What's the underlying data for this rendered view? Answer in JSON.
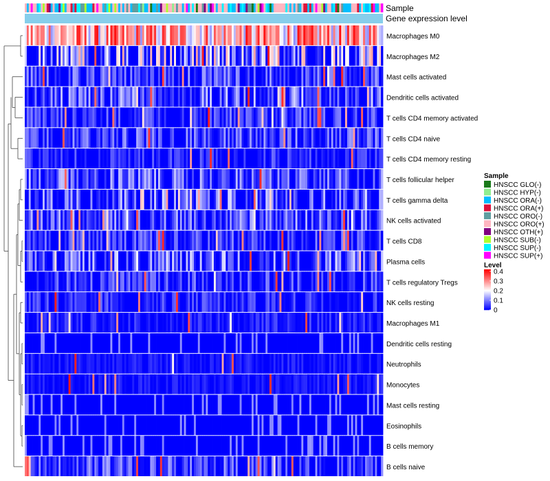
{
  "chart_data": {
    "type": "heatmap",
    "title": "",
    "annotation_rows": [
      {
        "label": "Sample"
      },
      {
        "label": "Gene expression level"
      }
    ],
    "rows": [
      {
        "label": "Macrophages M0",
        "mean": 0.26
      },
      {
        "label": "Macrophages M2",
        "mean": 0.13
      },
      {
        "label": "Mast cells activated",
        "mean": 0.06
      },
      {
        "label": "Dendritic cells activated",
        "mean": 0.08
      },
      {
        "label": "T cells CD4 memory activated",
        "mean": 0.05
      },
      {
        "label": "T cells CD4 naive",
        "mean": 0.06
      },
      {
        "label": "T cells CD4 memory resting",
        "mean": 0.04
      },
      {
        "label": "T cells follicular helper",
        "mean": 0.07
      },
      {
        "label": "T cells gamma delta",
        "mean": 0.08
      },
      {
        "label": "NK cells activated",
        "mean": 0.07
      },
      {
        "label": "T cells CD8",
        "mean": 0.05
      },
      {
        "label": "Plasma cells",
        "mean": 0.08
      },
      {
        "label": "T cells regulatory  Tregs",
        "mean": 0.05
      },
      {
        "label": "NK cells resting",
        "mean": 0.04
      },
      {
        "label": "Macrophages M1",
        "mean": 0.03
      },
      {
        "label": "Dendritic cells resting",
        "mean": 0.01
      },
      {
        "label": "Neutrophils",
        "mean": 0.02
      },
      {
        "label": "Monocytes",
        "mean": 0.02
      },
      {
        "label": "Mast cells resting",
        "mean": 0.015
      },
      {
        "label": "Eosinophils",
        "mean": 0.01
      },
      {
        "label": "B cells memory",
        "mean": 0.01
      },
      {
        "label": "B cells naive",
        "mean": 0.06
      }
    ],
    "n_columns": 180,
    "sample_legend": {
      "title": "Sample",
      "items": [
        {
          "label": "HNSCC GLO(-)",
          "color": "#1a7a1a"
        },
        {
          "label": "HNSCC HYP(-)",
          "color": "#90ee90"
        },
        {
          "label": "HNSCC ORA(-)",
          "color": "#00bfff"
        },
        {
          "label": "HNSCC ORA(+)",
          "color": "#dc143c"
        },
        {
          "label": "HNSCC ORO(-)",
          "color": "#5f9ea0"
        },
        {
          "label": "HNSCC ORO(+)",
          "color": "#ffb6c1"
        },
        {
          "label": "HNSCC OTH(+)",
          "color": "#800080"
        },
        {
          "label": "HNSCC SUB(-)",
          "color": "#adff2f"
        },
        {
          "label": "HNSCC SUP(-)",
          "color": "#00f5ff"
        },
        {
          "label": "HNSCC SUP(+)",
          "color": "#ff00ff"
        }
      ]
    },
    "level_legend": {
      "title": "Level",
      "ticks": [
        {
          "label": "0.4",
          "value": 0.4
        },
        {
          "label": "0.3",
          "value": 0.3
        },
        {
          "label": "0.2",
          "value": 0.2
        },
        {
          "label": "0.1",
          "value": 0.1
        },
        {
          "label": "0",
          "value": 0
        }
      ],
      "min": 0,
      "max": 0.42,
      "color_low": "#0000ff",
      "color_mid": "#ffffff",
      "color_high": "#ff0000"
    },
    "gene_expression_color": "#87ceeb",
    "dendrogram": "hierarchical clustering of rows (left side)"
  }
}
